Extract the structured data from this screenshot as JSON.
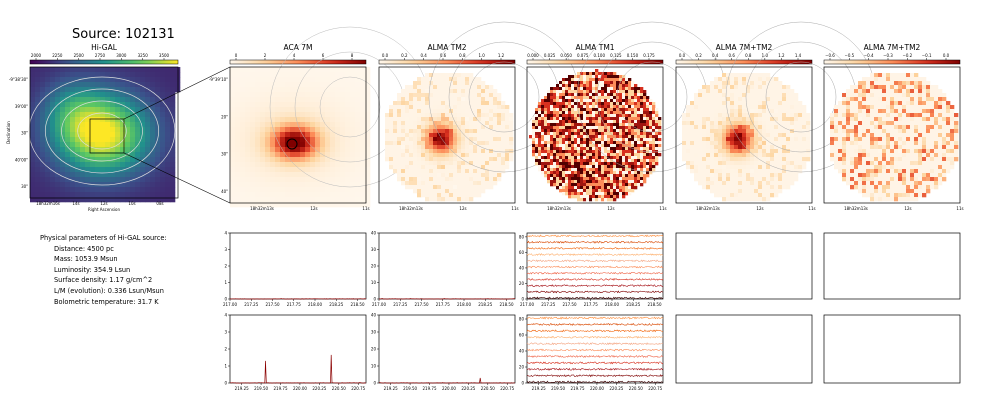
{
  "title": "Source: 102131",
  "colors": {
    "cmap_dark": "#8b0000",
    "cmap_light": "#fff3e6"
  },
  "physical": {
    "heading": "Physical parameters of Hi-GAL source:",
    "lines": [
      "Distance: 4500 pc",
      "Mass: 1053.9 Msun",
      "Luminosity: 354.9 Lsun",
      "Surface density: 1.17 g/cm^2",
      "L/M (evolution): 0.336 Lsun/Msun",
      "Bolometric temperature: 31.7 K"
    ]
  },
  "chart_data": [
    {
      "type": "heatmap",
      "title": "Hi-GAL",
      "colorbar_ticks": [
        "2000",
        "2250",
        "2500",
        "2750",
        "3000",
        "3250",
        "3500"
      ],
      "xlabel": "Right Ascension",
      "ylabel": "Declination",
      "xticks": [
        "18h32m16s",
        "14s",
        "12s",
        "10s",
        "08s"
      ],
      "yticks": [
        "-9°38'30\"",
        "39'00\"",
        "30\"",
        "40'00\"",
        "30\""
      ]
    },
    {
      "type": "heatmap",
      "title": "ACA 7M",
      "colorbar_ticks": [
        "0",
        "2",
        "4",
        "6",
        "8"
      ],
      "xticks": [
        "18h32m13s",
        "12s",
        "11s"
      ],
      "yticks": [
        "-9°39'10\"",
        "20\"",
        "30\"",
        "40\""
      ]
    },
    {
      "type": "heatmap",
      "title": "ALMA TM2",
      "colorbar_ticks": [
        "0.0",
        "0.2",
        "0.4",
        "0.6",
        "0.8",
        "1.0",
        "1.2"
      ],
      "xticks": [
        "18h32m13s",
        "12s",
        "11s"
      ]
    },
    {
      "type": "heatmap",
      "title": "ALMA TM1",
      "colorbar_ticks": [
        "0.000",
        "0.025",
        "0.050",
        "0.075",
        "0.100",
        "0.125",
        "0.150",
        "0.175"
      ],
      "xticks": [
        "18h32m13s",
        "12s",
        "11s"
      ]
    },
    {
      "type": "heatmap",
      "title": "ALMA 7M+TM2",
      "colorbar_ticks": [
        "0.0",
        "0.2",
        "0.4",
        "0.6",
        "0.8",
        "1.0",
        "1.2",
        "1.4"
      ],
      "xticks": [
        "18h32m13s",
        "12s",
        "11s"
      ]
    },
    {
      "type": "heatmap",
      "title": "ALMA 7M+TM2",
      "colorbar_ticks": [
        "−0.6",
        "−0.5",
        "−0.4",
        "−0.3",
        "−0.2",
        "−0.1",
        "0.0"
      ],
      "xticks": [
        "18h32m13s",
        "12s",
        "11s"
      ]
    },
    {
      "type": "line",
      "panel": "ACA 7M spectrum (upper)",
      "xlim": [
        217.0,
        218.6
      ],
      "ylim": [
        0,
        4
      ],
      "xticks": [
        "217.00",
        "217.25",
        "217.50",
        "217.75",
        "218.00",
        "218.25",
        "218.50"
      ],
      "yticks": [
        "0",
        "1",
        "2",
        "3",
        "4"
      ],
      "series": [
        {
          "peaks": []
        }
      ]
    },
    {
      "type": "line",
      "panel": "ALMA TM2 spectrum (upper)",
      "xlim": [
        217.0,
        218.6
      ],
      "ylim": [
        0,
        40
      ],
      "xticks": [
        "217.00",
        "217.25",
        "217.50",
        "217.75",
        "218.00",
        "218.25",
        "218.50"
      ],
      "yticks": [
        "0",
        "10",
        "20",
        "30",
        "40"
      ],
      "series": [
        {
          "peaks": []
        }
      ]
    },
    {
      "type": "line",
      "panel": "ALMA TM1 spectra (upper)",
      "xlim": [
        217.0,
        218.6
      ],
      "ylim": [
        0,
        85
      ],
      "xticks": [
        "217.00",
        "217.25",
        "217.50",
        "217.75",
        "218.00",
        "218.25",
        "218.50"
      ],
      "yticks": [
        "0",
        "20",
        "40",
        "60",
        "80"
      ],
      "series": [
        {
          "offsets": [
            0,
            8,
            16,
            24,
            32,
            40,
            48,
            56,
            64,
            72,
            80
          ]
        }
      ]
    },
    {
      "type": "line",
      "panel": "ACA 7M spectrum (lower)",
      "xlim": [
        219.1,
        220.85
      ],
      "ylim": [
        0,
        4
      ],
      "xticks": [
        "219.25",
        "219.50",
        "219.75",
        "220.00",
        "220.25",
        "220.50",
        "220.75"
      ],
      "yticks": [
        "0",
        "1",
        "2",
        "3",
        "4"
      ],
      "series": [
        {
          "peaks": [
            {
              "x": 219.56,
              "y": 1.3
            },
            {
              "x": 220.4,
              "y": 1.65
            }
          ]
        }
      ]
    },
    {
      "type": "line",
      "panel": "ALMA TM2 spectrum (lower)",
      "xlim": [
        219.1,
        220.85
      ],
      "ylim": [
        0,
        40
      ],
      "xticks": [
        "219.25",
        "219.50",
        "219.75",
        "220.00",
        "220.25",
        "220.50",
        "220.75"
      ],
      "yticks": [
        "0",
        "10",
        "20",
        "30",
        "40"
      ],
      "series": [
        {
          "peaks": [
            {
              "x": 220.4,
              "y": 3
            }
          ]
        }
      ]
    },
    {
      "type": "line",
      "panel": "ALMA TM1 spectra (lower)",
      "xlim": [
        219.1,
        220.85
      ],
      "ylim": [
        0,
        85
      ],
      "xticks": [
        "219.25",
        "219.50",
        "219.75",
        "220.00",
        "220.25",
        "220.50",
        "220.75"
      ],
      "yticks": [
        "0",
        "20",
        "40",
        "60",
        "80"
      ],
      "series": [
        {
          "offsets": [
            0,
            8,
            16,
            24,
            32,
            40,
            48,
            56,
            64,
            72,
            80
          ]
        }
      ]
    }
  ]
}
